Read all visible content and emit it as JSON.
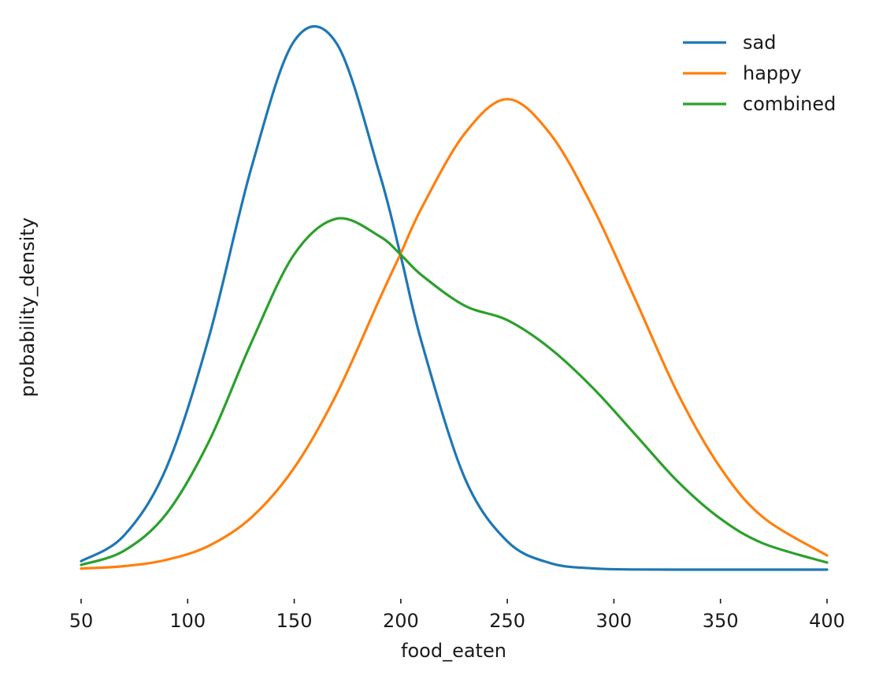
{
  "chart_data": {
    "type": "line",
    "title": "",
    "xlabel": "food_eaten",
    "ylabel": "probability_density",
    "xlim": [
      50,
      400
    ],
    "x_ticks": [
      50,
      100,
      150,
      200,
      250,
      300,
      350,
      400
    ],
    "x_tick_labels": [
      "50",
      "100",
      "150",
      "200",
      "250",
      "300",
      "350",
      "400"
    ],
    "y_ticks_shown": false,
    "grid": false,
    "legend_position": "top-right",
    "x": [
      50,
      70,
      90,
      110,
      130,
      150,
      170,
      190,
      200,
      210,
      230,
      250,
      270,
      290,
      310,
      330,
      350,
      370,
      400
    ],
    "series": [
      {
        "name": "sad",
        "color": "#1f77b4",
        "values": [
          0.00054,
          0.00215,
          0.00648,
          0.0148,
          0.02562,
          0.03363,
          0.03345,
          0.02521,
          0.01994,
          0.01436,
          0.00583,
          0.0018,
          0.00042,
          8e-05,
          1e-05,
          0.0,
          0.0,
          0.0,
          0.0
        ]
      },
      {
        "name": "happy",
        "color": "#ff7f0e",
        "values": [
          7e-05,
          0.00022,
          0.00062,
          0.00152,
          0.00333,
          0.00648,
          0.0112,
          0.0172,
          0.02013,
          0.02307,
          0.02774,
          0.02993,
          0.02774,
          0.02307,
          0.0172,
          0.0112,
          0.00648,
          0.00333,
          0.0009
        ]
      },
      {
        "name": "combined",
        "color": "#2ca02c",
        "values": [
          0.0003,
          0.00119,
          0.00355,
          0.00816,
          0.01448,
          0.02006,
          0.02233,
          0.02121,
          0.02003,
          0.01871,
          0.01679,
          0.01587,
          0.01408,
          0.01158,
          0.0086,
          0.0056,
          0.00324,
          0.00167,
          0.00045
        ]
      }
    ]
  }
}
